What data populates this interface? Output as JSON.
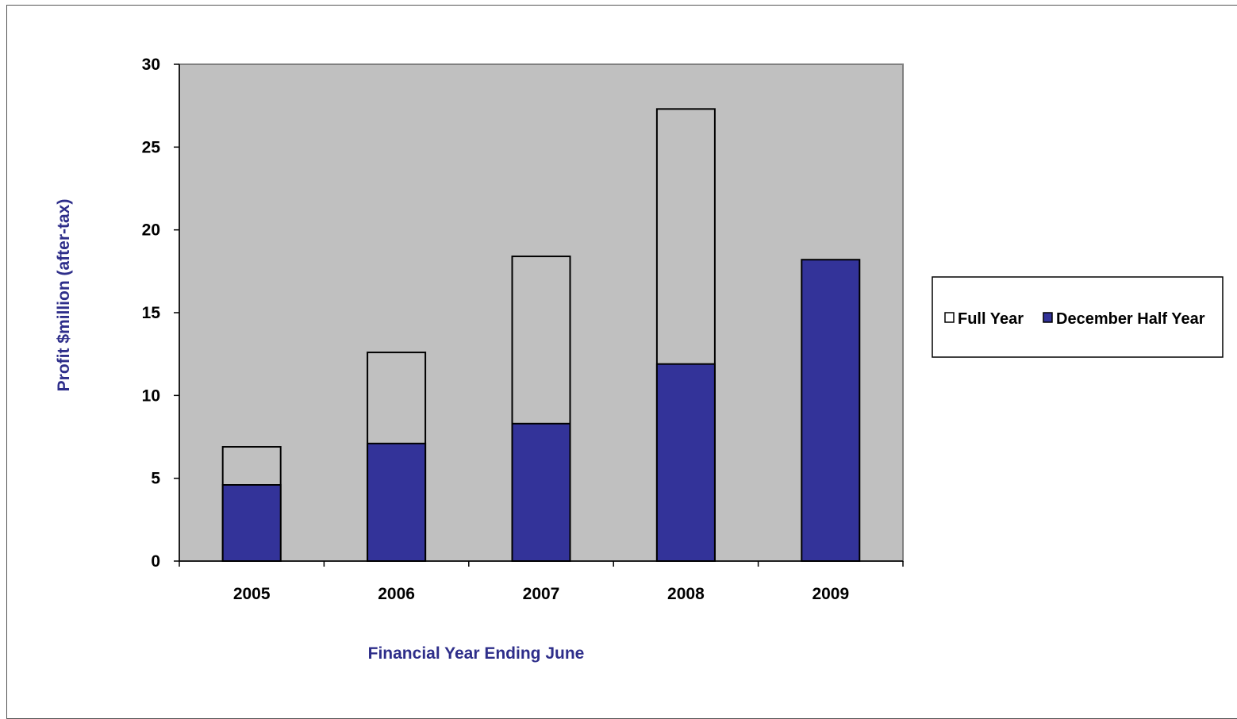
{
  "chart_data": {
    "type": "bar",
    "stacked": false,
    "overlapping": true,
    "categories": [
      "2005",
      "2006",
      "2007",
      "2008",
      "2009"
    ],
    "series": [
      {
        "name": "Full Year",
        "values": [
          6.9,
          12.6,
          18.4,
          27.3,
          null
        ],
        "color": "#c0c0c0",
        "fill": "none"
      },
      {
        "name": "December Half Year",
        "values": [
          4.6,
          7.1,
          8.3,
          11.9,
          18.2
        ],
        "color": "#333399"
      }
    ],
    "title": "",
    "xlabel": "Financial Year Ending June",
    "ylabel": "Profit $million (after-tax)",
    "ylim": [
      0,
      30
    ],
    "yticks": [
      "0",
      "5",
      "10",
      "15",
      "20",
      "25",
      "30"
    ],
    "grid": false,
    "legend": "right",
    "plot_background": "#c0c0c0"
  }
}
